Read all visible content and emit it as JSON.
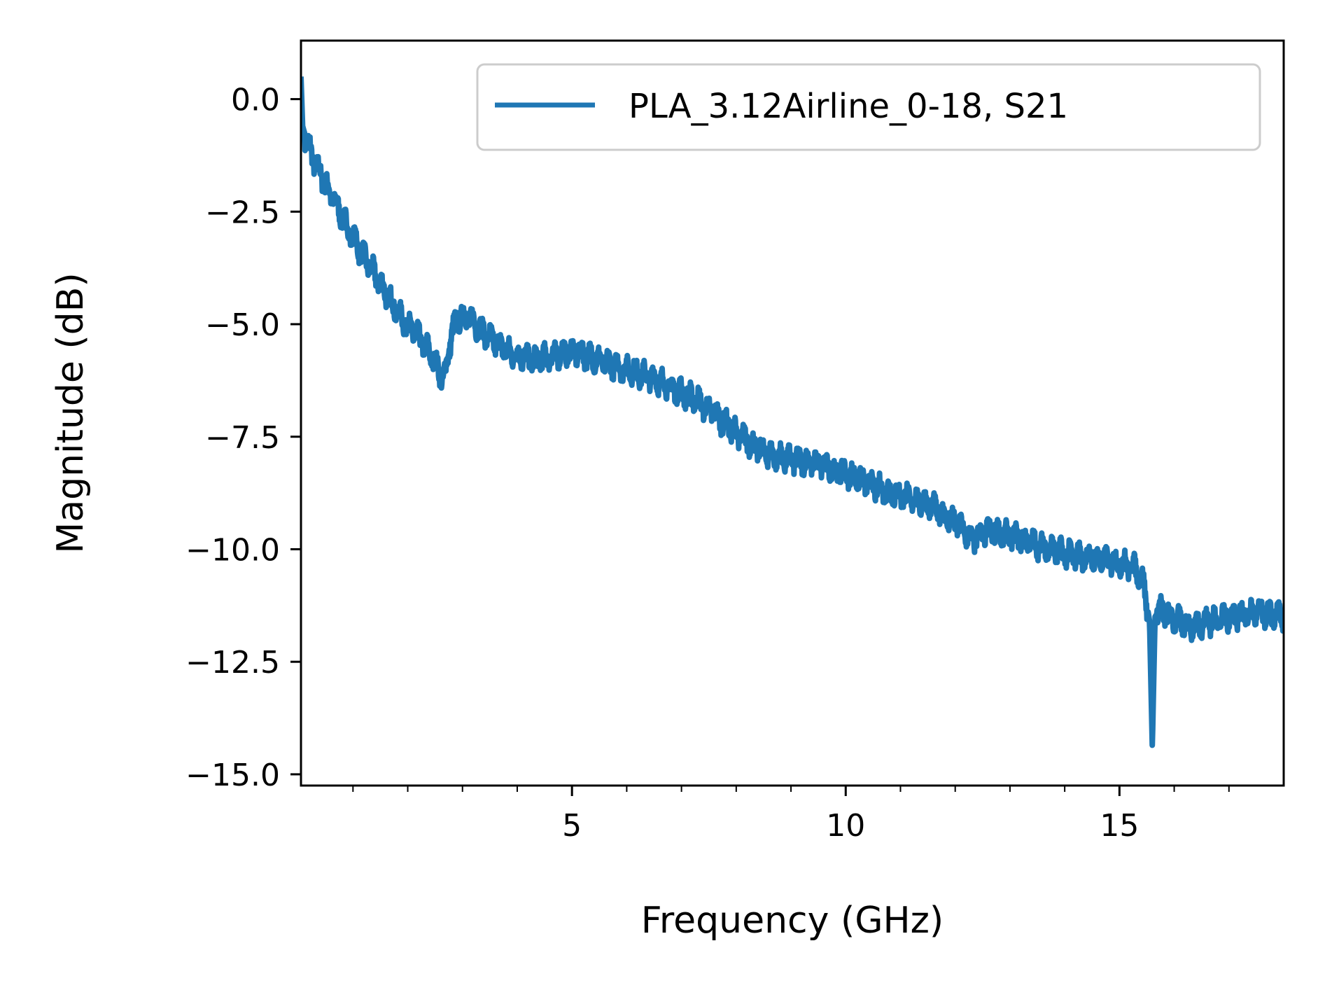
{
  "chart_data": {
    "type": "line",
    "title": "",
    "xlabel": "Frequency (GHz)",
    "ylabel": "Magnitude (dB)",
    "xlim": [
      0.05,
      18
    ],
    "ylim": [
      -15.25,
      1.3
    ],
    "x_ticks": [
      5,
      10,
      15
    ],
    "x_tick_labels": [
      "5",
      "10",
      "15"
    ],
    "x_minor_ticks": [
      1,
      2,
      3,
      4,
      6,
      7,
      8,
      9,
      11,
      12,
      13,
      14,
      16,
      17
    ],
    "y_ticks": [
      0.0,
      -2.5,
      -5.0,
      -7.5,
      -10.0,
      -12.5,
      -15.0
    ],
    "y_tick_labels": [
      "0.0",
      "−2.5",
      "−5.0",
      "−7.5",
      "−10.0",
      "−12.5",
      "−15.0"
    ],
    "grid": false,
    "legend": {
      "position": "top-right",
      "entries": [
        "PLA_3.12Airline_0-18, S21"
      ]
    },
    "series": [
      {
        "name": "PLA_3.12Airline_0-18, S21",
        "color": "#1f77b4",
        "ripple_amplitude_db": 0.35,
        "x": [
          0.05,
          0.08,
          0.15,
          0.3,
          0.5,
          0.8,
          1.0,
          1.3,
          1.6,
          1.9,
          2.2,
          2.4,
          2.55,
          2.65,
          2.7,
          2.8,
          2.9,
          3.0,
          3.15,
          3.3,
          3.5,
          3.8,
          4.0,
          4.3,
          4.6,
          5.0,
          5.5,
          6.0,
          6.5,
          7.0,
          7.3,
          7.6,
          8.0,
          8.3,
          8.6,
          9.0,
          9.5,
          10.0,
          10.5,
          11.0,
          11.5,
          12.0,
          12.3,
          12.6,
          13.0,
          13.5,
          14.0,
          14.5,
          15.0,
          15.3,
          15.45,
          15.55,
          15.6,
          15.65,
          15.75,
          15.9,
          16.3,
          17.0,
          17.5,
          18.0
        ],
        "y": [
          0.5,
          -0.6,
          -0.9,
          -1.4,
          -1.9,
          -2.6,
          -3.1,
          -3.7,
          -4.3,
          -4.9,
          -5.3,
          -5.6,
          -6.0,
          -6.2,
          -6.0,
          -5.2,
          -4.9,
          -4.8,
          -4.9,
          -5.1,
          -5.3,
          -5.6,
          -5.7,
          -5.8,
          -5.7,
          -5.6,
          -5.8,
          -6.0,
          -6.2,
          -6.5,
          -6.7,
          -7.0,
          -7.4,
          -7.7,
          -7.9,
          -8.0,
          -8.1,
          -8.3,
          -8.6,
          -8.8,
          -9.0,
          -9.4,
          -9.8,
          -9.6,
          -9.7,
          -9.9,
          -10.1,
          -10.2,
          -10.3,
          -10.4,
          -10.8,
          -11.6,
          -14.4,
          -11.5,
          -11.3,
          -11.5,
          -11.7,
          -11.5,
          -11.4,
          -11.5
        ]
      }
    ]
  }
}
